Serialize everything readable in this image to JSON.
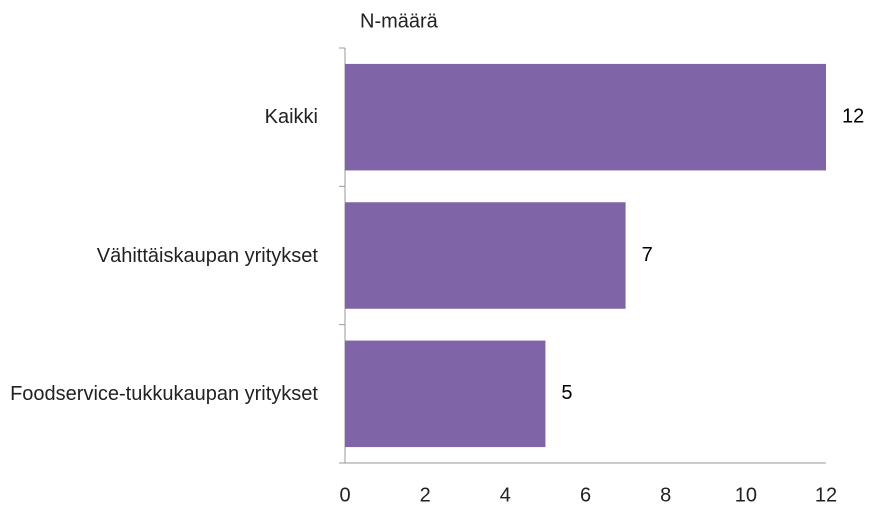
{
  "chart_data": {
    "type": "barh",
    "title": "N-määrä",
    "categories": [
      "Kaikki",
      "Vähittäiskaupan yritykset",
      "Foodservice-tukkukaupan yritykset"
    ],
    "values": [
      12,
      7,
      5
    ],
    "color": "#8064a8",
    "xlim": [
      0,
      12
    ],
    "xticks": [
      0,
      2,
      4,
      6,
      8,
      10,
      12
    ],
    "grid": false
  }
}
